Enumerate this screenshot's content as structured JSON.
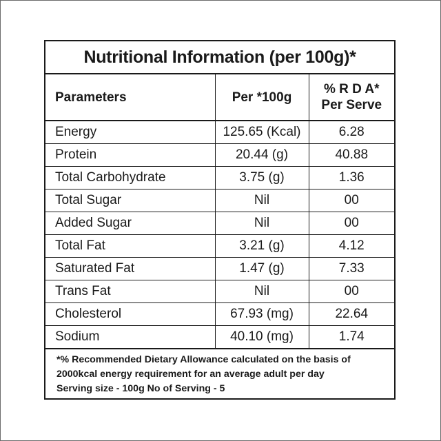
{
  "title": "Nutritional Information (per 100g)*",
  "headers": {
    "parameters": "Parameters",
    "per100g": "Per *100g",
    "rda_line1": "% R D A*",
    "rda_line2": "Per Serve"
  },
  "rows": [
    {
      "name": "Energy",
      "per100g": "125.65 (Kcal)",
      "rda": "6.28"
    },
    {
      "name": "Protein",
      "per100g": "20.44 (g)",
      "rda": "40.88"
    },
    {
      "name": "Total Carbohydrate",
      "per100g": "3.75 (g)",
      "rda": "1.36"
    },
    {
      "name": "Total Sugar",
      "per100g": "Nil",
      "rda": "00"
    },
    {
      "name": "Added Sugar",
      "per100g": "Nil",
      "rda": "00"
    },
    {
      "name": "Total Fat",
      "per100g": "3.21 (g)",
      "rda": "4.12"
    },
    {
      "name": "Saturated Fat",
      "per100g": "1.47 (g)",
      "rda": "7.33"
    },
    {
      "name": "Trans Fat",
      "per100g": "Nil",
      "rda": "00"
    },
    {
      "name": "Cholesterol",
      "per100g": "67.93 (mg)",
      "rda": "22.64"
    },
    {
      "name": "Sodium",
      "per100g": "40.10 (mg)",
      "rda": "1.74"
    }
  ],
  "footnote": {
    "line1": "*% Recommended Dietary Allowance calculated on the basis of",
    "line2": "2000kcal energy requirement for an average adult per day",
    "line3": "Serving size - 100g No of Serving - 5"
  }
}
